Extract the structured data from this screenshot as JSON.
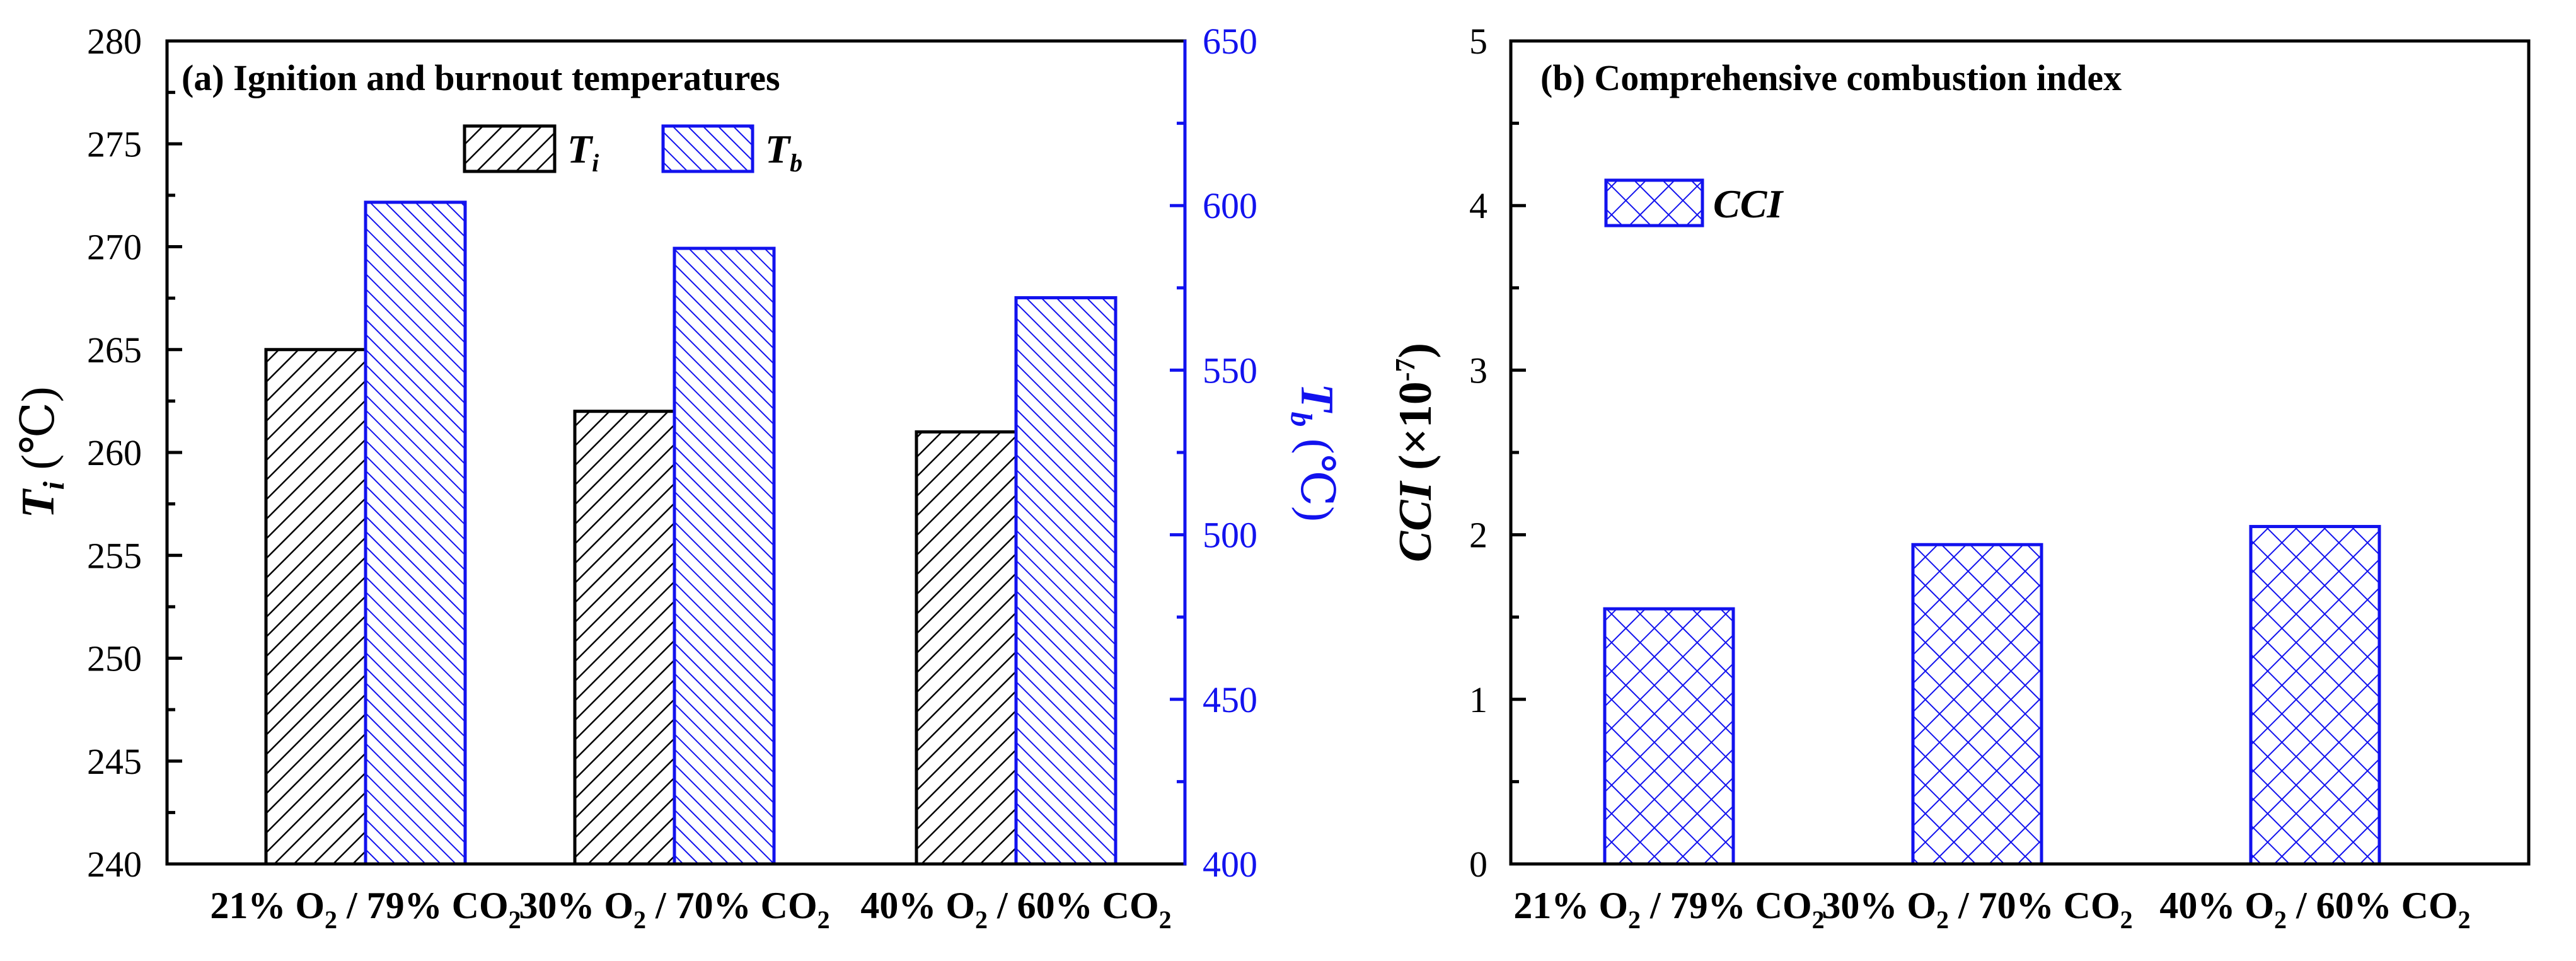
{
  "colors": {
    "left_series": "#000000",
    "right_series": "#1212ee",
    "background": "#ffffff"
  },
  "chart_data": [
    {
      "type": "bar",
      "title": "(a) Ignition and burnout temperatures",
      "categories": [
        {
          "pct_o2": "21%",
          "o2": "O",
          "o2_sub": "2",
          "sep": "/",
          "pct_co2": "79%",
          "co2": "CO",
          "co2_sub": "2"
        },
        {
          "pct_o2": "30%",
          "o2": "O",
          "o2_sub": "2",
          "sep": "/",
          "pct_co2": "70%",
          "co2": "CO",
          "co2_sub": "2"
        },
        {
          "pct_o2": "40%",
          "o2": "O",
          "o2_sub": "2",
          "sep": "/",
          "pct_co2": "60%",
          "co2": "CO",
          "co2_sub": "2"
        }
      ],
      "series": [
        {
          "name": "Ti",
          "axis": "left",
          "values": [
            265,
            262,
            261
          ],
          "pattern": "diagonal hatch",
          "color": "#000000"
        },
        {
          "name": "Tb",
          "axis": "right",
          "values": [
            601,
            587,
            572
          ],
          "pattern": "back-diagonal hatch",
          "color": "#1212ee"
        }
      ],
      "ylabel_left": {
        "main": "T",
        "sub": "i",
        "unit": " (℃)"
      },
      "ylabel_right": {
        "main": "T",
        "sub": "b",
        "unit": " (℃)"
      },
      "ylim_left": [
        240,
        280
      ],
      "yticks_left": [
        "240",
        "245",
        "250",
        "255",
        "260",
        "265",
        "270",
        "275",
        "280"
      ],
      "ylim_right": [
        400,
        650
      ],
      "yticks_right": [
        "400",
        "450",
        "500",
        "550",
        "600",
        "650"
      ],
      "legend": [
        {
          "main": "T",
          "sub": "i"
        },
        {
          "main": "T",
          "sub": "b"
        }
      ],
      "legend_position": "top-center"
    },
    {
      "type": "bar",
      "title": "(b) Comprehensive combustion index",
      "categories": [
        {
          "pct_o2": "21%",
          "o2": "O",
          "o2_sub": "2",
          "sep": "/",
          "pct_co2": "79%",
          "co2": "CO",
          "co2_sub": "2"
        },
        {
          "pct_o2": "30%",
          "o2": "O",
          "o2_sub": "2",
          "sep": "/",
          "pct_co2": "70%",
          "co2": "CO",
          "co2_sub": "2"
        },
        {
          "pct_o2": "40%",
          "o2": "O",
          "o2_sub": "2",
          "sep": "/",
          "pct_co2": "60%",
          "co2": "CO",
          "co2_sub": "2"
        }
      ],
      "series": [
        {
          "name": "CCI",
          "values": [
            1.55,
            1.94,
            2.05
          ],
          "pattern": "cross hatch",
          "color": "#1212ee"
        }
      ],
      "ylabel": {
        "main": "CCI",
        "unit_open": " (×10",
        "exp": "-7",
        "unit_close": ")"
      },
      "ylim": [
        0,
        5
      ],
      "yticks": [
        "0",
        "1",
        "2",
        "3",
        "4",
        "5"
      ],
      "legend": [
        {
          "main": "CCI"
        }
      ],
      "legend_position": "top-left"
    }
  ]
}
